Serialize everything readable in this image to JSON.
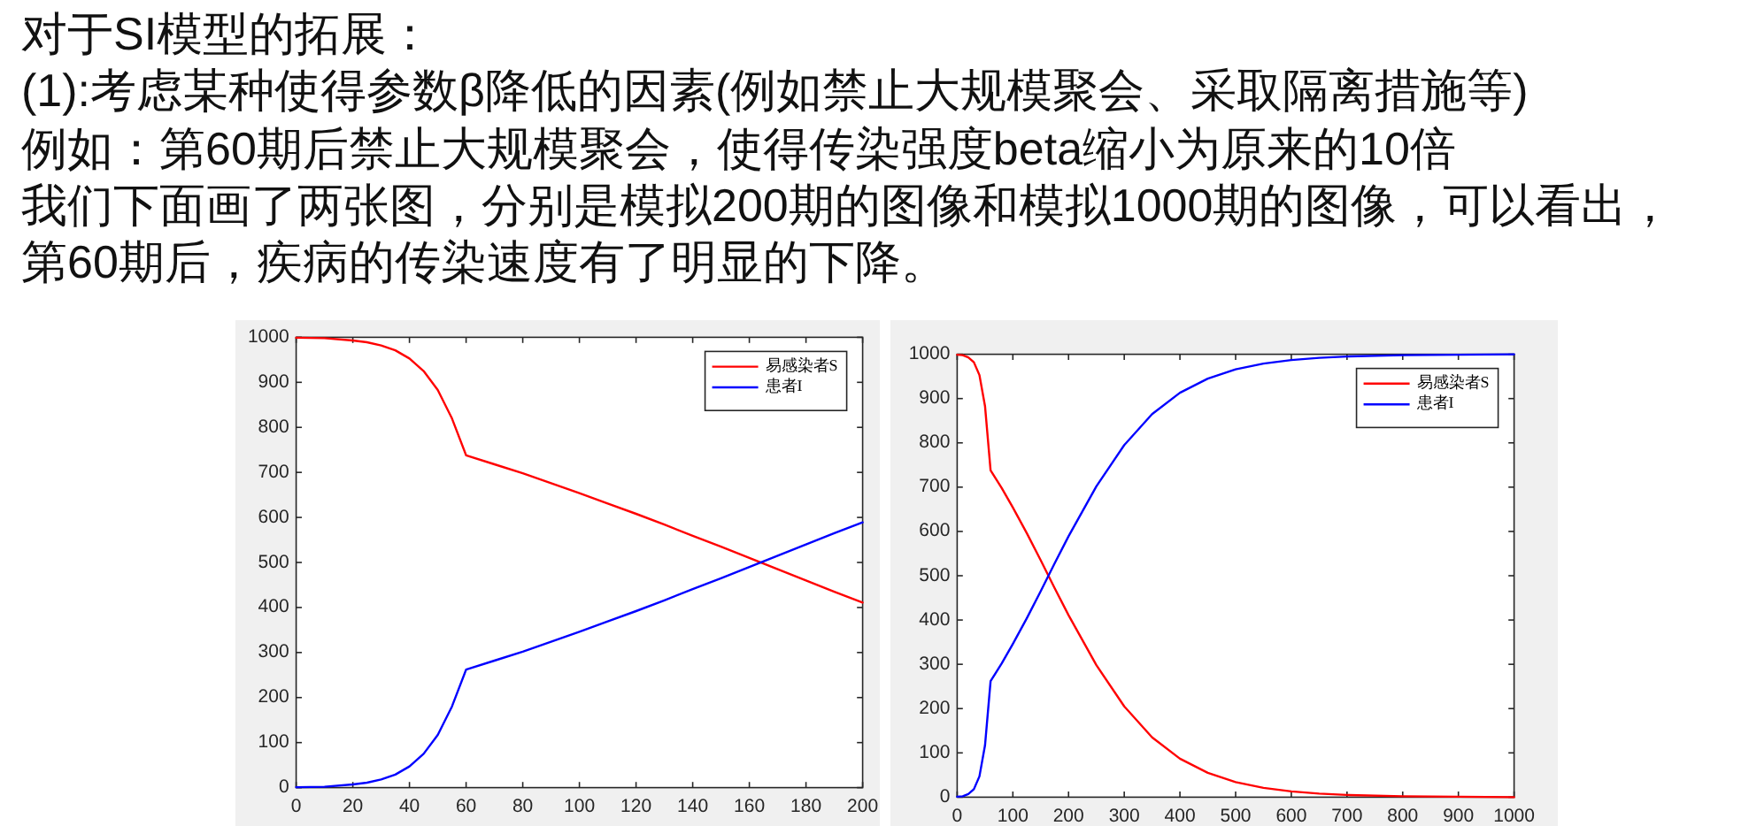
{
  "chart_data": [
    {
      "type": "other",
      "title": "对于SI模型的拓展：",
      "annotations": [
        "(1):考虑某种使得参数β降低的因素(例如禁止大规模聚会、采取隔离措施等)",
        "例如：第60期后禁止大规模聚会，使得传染强度beta缩小为原来的10倍",
        "我们下面画了两张图，分别是模拟200期的图像和模拟1000期的图像，可以看出，",
        "第60期后，疾病的传染速度有了明显的下降。"
      ]
    },
    {
      "type": "line",
      "x": [
        0,
        10,
        20,
        25,
        30,
        35,
        40,
        45,
        50,
        55,
        60,
        70,
        80,
        90,
        100,
        110,
        120,
        130,
        140,
        150,
        160,
        170,
        180,
        190,
        200
      ],
      "series": [
        {
          "name": "易感染者S",
          "color": "#ff0000",
          "values": [
            999,
            998,
            993,
            989,
            982,
            971,
            953,
            925,
            883,
            820,
            738,
            718,
            698,
            676,
            654,
            631,
            608,
            584,
            559,
            535,
            510,
            485,
            460,
            435,
            411
          ]
        },
        {
          "name": "患者I",
          "color": "#0000ff",
          "values": [
            1,
            2,
            7,
            11,
            18,
            29,
            47,
            75,
            117,
            180,
            262,
            282,
            302,
            324,
            346,
            369,
            392,
            416,
            441,
            465,
            490,
            515,
            540,
            565,
            589
          ]
        }
      ],
      "xlim": [
        0,
        200
      ],
      "xticks": [
        0,
        20,
        40,
        60,
        80,
        100,
        120,
        140,
        160,
        180,
        200
      ],
      "ylim": [
        0,
        1000
      ],
      "yticks": [
        0,
        100,
        200,
        300,
        400,
        500,
        600,
        700,
        800,
        900,
        1000
      ],
      "legend": "top right",
      "line_style": "solid"
    },
    {
      "type": "line",
      "x": [
        0,
        10,
        20,
        30,
        40,
        50,
        60,
        80,
        100,
        125,
        150,
        175,
        200,
        250,
        300,
        350,
        400,
        450,
        500,
        550,
        600,
        650,
        700,
        800,
        900,
        1000
      ],
      "series": [
        {
          "name": "易感染者S",
          "color": "#ff0000",
          "values": [
            999,
            998,
            993,
            982,
            953,
            883,
            738,
            698,
            654,
            596,
            535,
            472,
            411,
            298,
            205,
            135,
            87,
            55,
            34,
            21,
            13,
            8,
            5,
            2,
            1,
            0
          ]
        },
        {
          "name": "患者I",
          "color": "#0000ff",
          "values": [
            1,
            2,
            7,
            18,
            47,
            117,
            262,
            302,
            346,
            404,
            465,
            528,
            589,
            702,
            795,
            865,
            913,
            945,
            966,
            979,
            987,
            992,
            995,
            998,
            999,
            1000
          ]
        }
      ],
      "xlim": [
        0,
        1000
      ],
      "xticks": [
        0,
        100,
        200,
        300,
        400,
        500,
        600,
        700,
        800,
        900,
        1000
      ],
      "ylim": [
        0,
        1000
      ],
      "yticks": [
        0,
        100,
        200,
        300,
        400,
        500,
        600,
        700,
        800,
        900,
        1000
      ],
      "legend": "top right",
      "line_style": "solid"
    }
  ]
}
